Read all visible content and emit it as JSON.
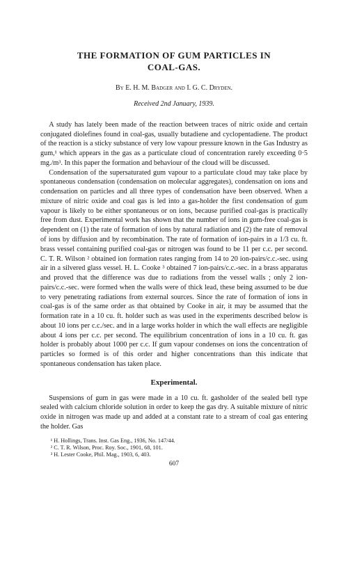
{
  "title_line1": "THE FORMATION OF GUM PARTICLES IN",
  "title_line2": "COAL-GAS.",
  "byline_prefix": "By ",
  "authors": "E. H. M. Badger and I. G. C. Dryden.",
  "received": "Received 2nd January, 1939.",
  "para1": "A study has lately been made of the reaction between traces of nitric oxide and certain conjugated diolefines found in coal-gas, usually butadiene and cyclopentadiene. The product of the reaction is a sticky substance of very low vapour pressure known in the Gas Industry as gum,¹ which appears in the gas as a particulate cloud of concentration rarely exceeding 0·5 mg./m³. In this paper the formation and behaviour of the cloud will be discussed.",
  "para2": "Condensation of the supersaturated gum vapour to a particulate cloud may take place by spontaneous condensation (condensation on molecular aggregates), condensation on ions and condensation on particles and all three types of condensation have been observed. When a mixture of nitric oxide and coal gas is led into a gas-holder the first condensation of gum vapour is likely to be either spontaneous or on ions, because purified coal-gas is practically free from dust. Experimental work has shown that the number of ions in gum-free coal-gas is dependent on (1) the rate of formation of ions by natural radiation and (2) the rate of removal of ions by diffusion and by recombination. The rate of formation of ion-pairs in a 1/3 cu. ft. brass vessel containing purified coal-gas or nitrogen was found to be 11 per c.c. per second. C. T. R. Wilson ² obtained ion formation rates ranging from 14 to 20 ion-pairs/c.c.-sec. using air in a silvered glass vessel. H. L. Cooke ³ obtained 7 ion-pairs/c.c.-sec. in a brass apparatus and proved that the difference was due to radiations from the vessel walls ; only 2 ion-pairs/c.c.-sec. were formed when the walls were of thick lead, these being assumed to be due to very penetrating radiations from external sources. Since the rate of formation of ions in coal-gas is of the same order as that obtained by Cooke in air, it may be assumed that the formation rate in a 10 cu. ft. holder such as was used in the experiments described below is about 10 ions per c.c./sec. and in a large works holder in which the wall effects are negligible about 4 ions per c.c. per second. The equilibrium concentration of ions in a 10 cu. ft. gas holder is probably about 1000 per c.c. If gum vapour condenses on ions the concentration of particles so formed is of this order and higher concentrations than this indicate that spontaneous condensation has taken place.",
  "section_head": "Experimental.",
  "para3": "Suspensions of gum in gas were made in a 10 cu. ft. gasholder of the sealed bell type sealed with calcium chloride solution in order to keep the gas dry. A suitable mixture of nitric oxide in nitrogen was made up and added at a constant rate to a stream of coal gas entering the holder. Gas",
  "footnotes": [
    "¹ H. Hollings, Trans. Inst. Gas Eng., 1936, No. 147/44.",
    "² C. T. R. Wilson, Proc. Roy. Soc., 1901, 68, 101.",
    "³ H. Lester Cooke, Phil. Mag., 1903, 6, 403."
  ],
  "pagenum": "607"
}
